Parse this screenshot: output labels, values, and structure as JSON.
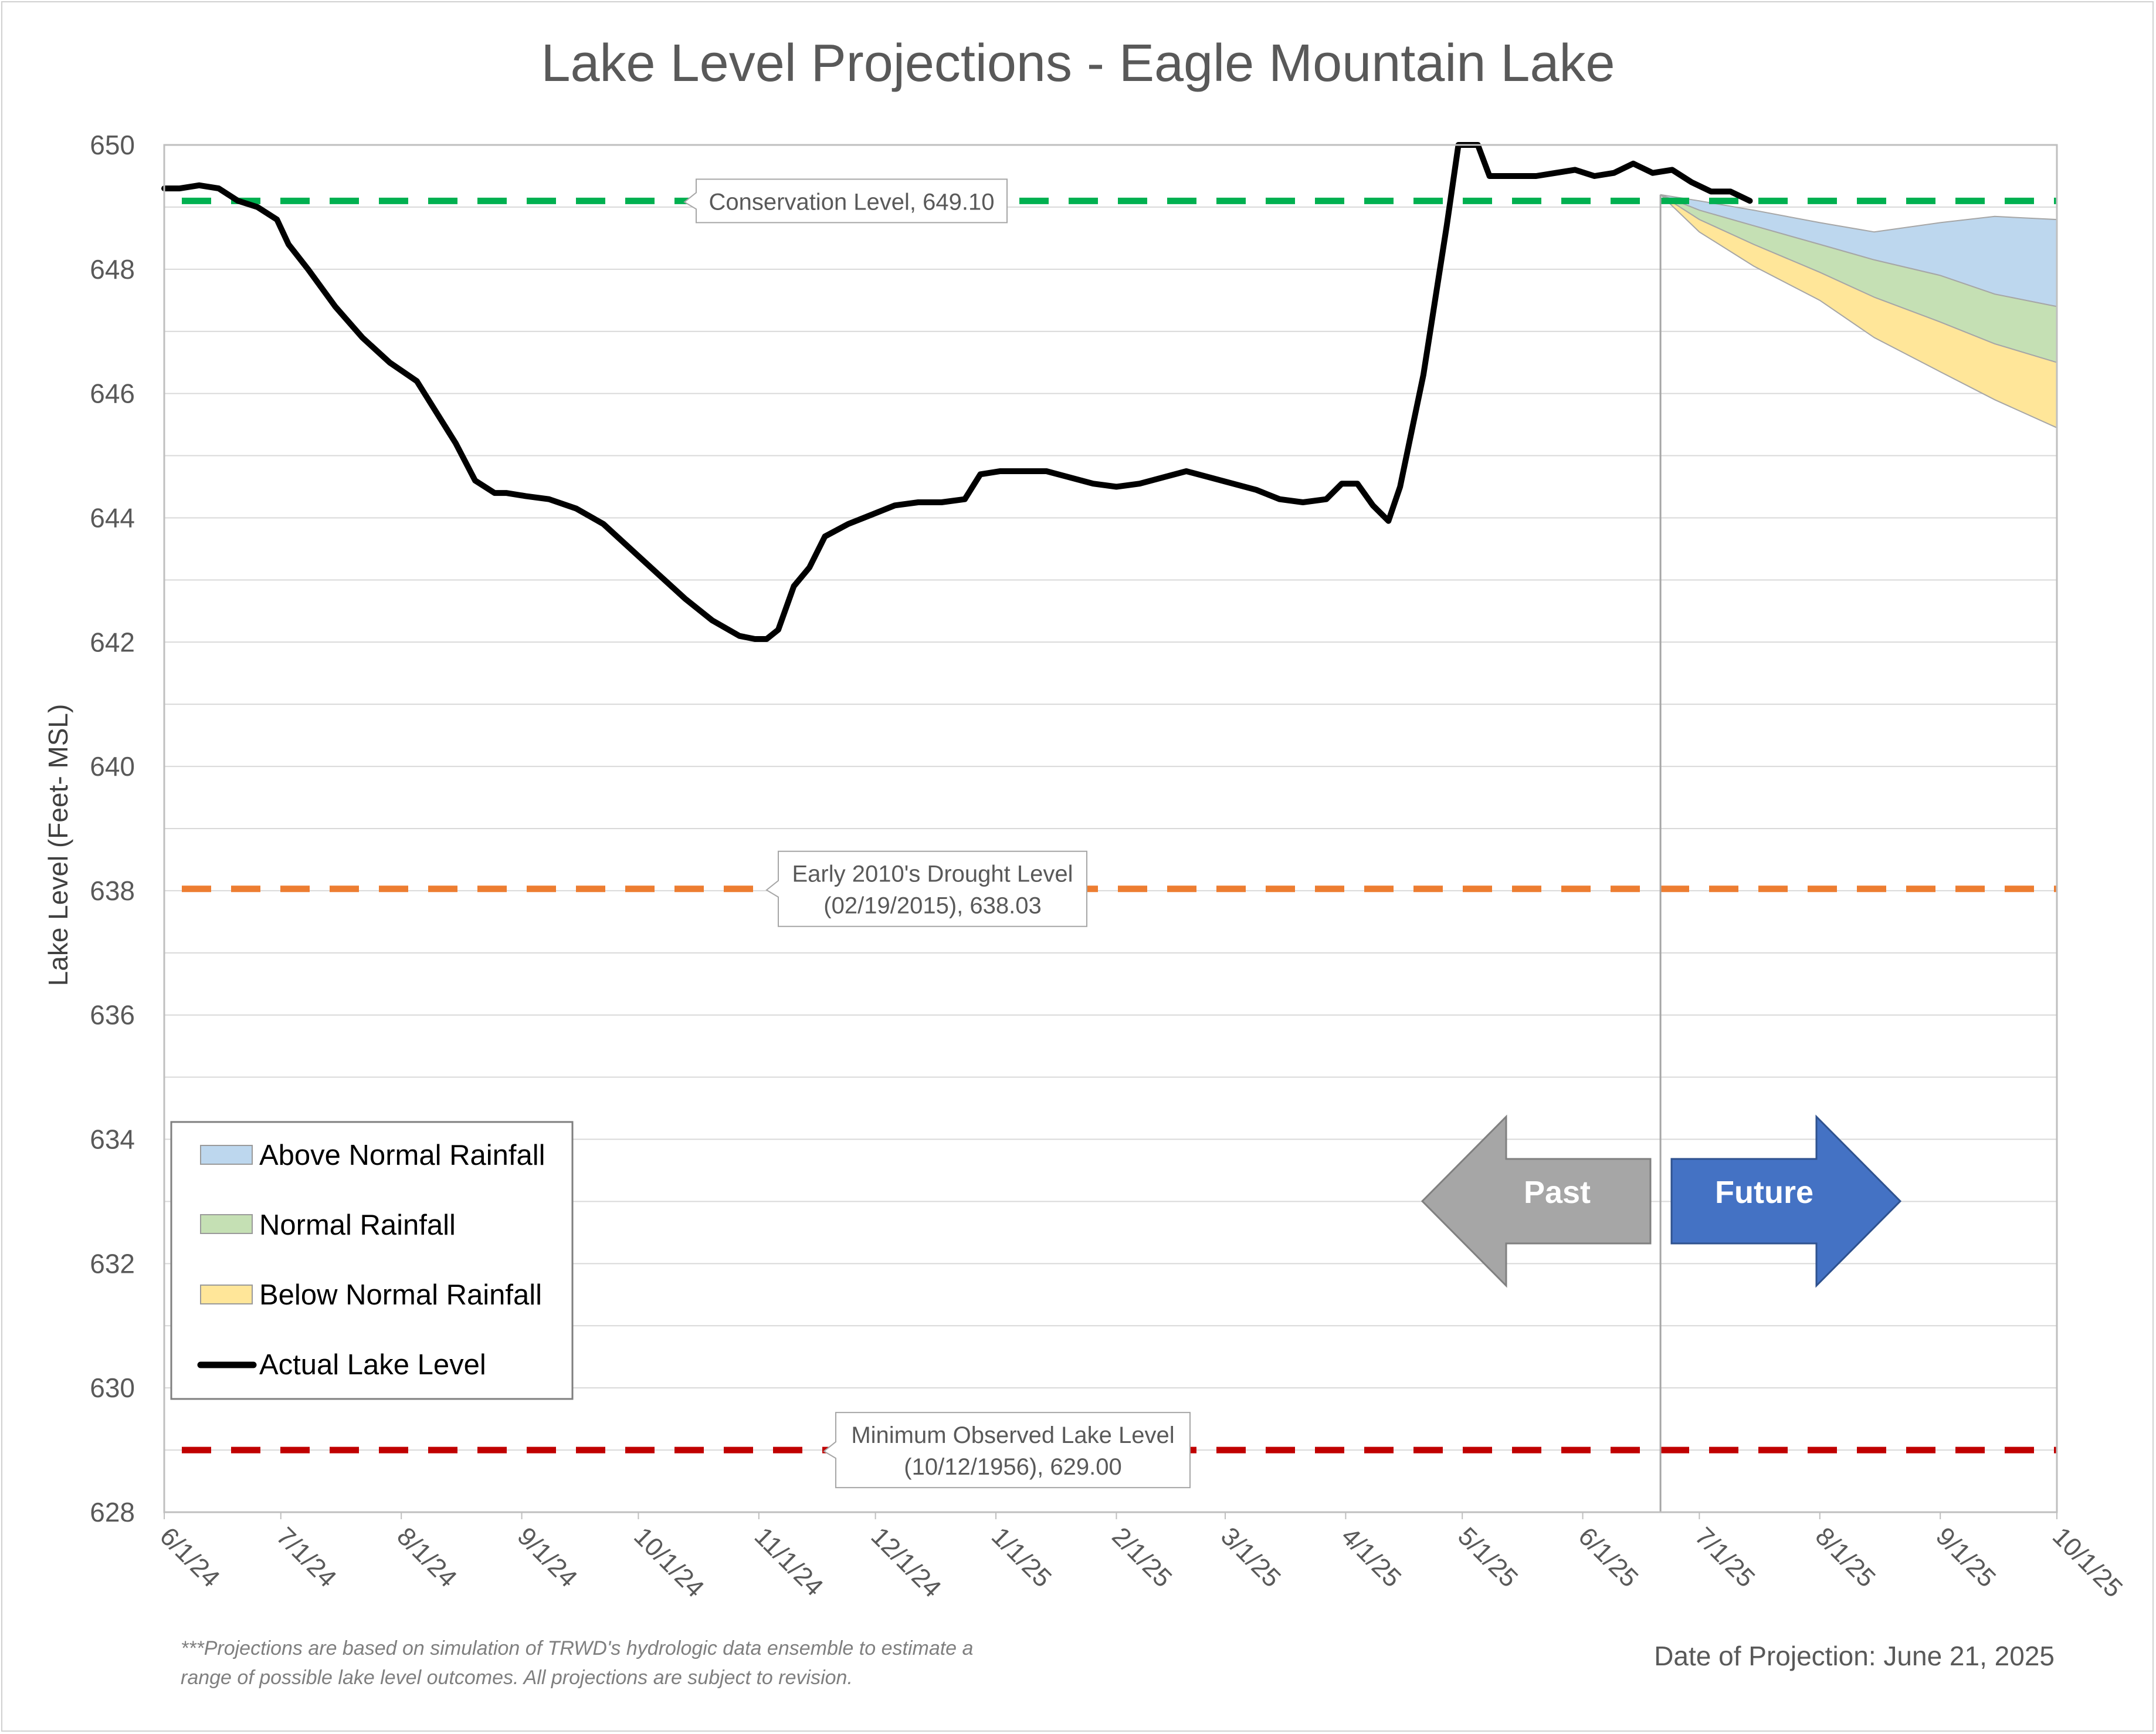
{
  "chart_data": {
    "type": "line",
    "title": "Lake Level Projections - Eagle Mountain Lake",
    "ylabel": "Lake Level (Feet- MSL)",
    "xlabel": "",
    "ylim": [
      628,
      650
    ],
    "yticks": [
      628,
      630,
      632,
      634,
      636,
      638,
      640,
      642,
      644,
      646,
      648,
      650
    ],
    "ygrid_step": 1,
    "x_start": "2024-06-01",
    "x_end": "2025-10-01",
    "xticks": [
      {
        "date": "2024-06-01",
        "label": "6/1/24"
      },
      {
        "date": "2024-07-01",
        "label": "7/1/24"
      },
      {
        "date": "2024-08-01",
        "label": "8/1/24"
      },
      {
        "date": "2024-09-01",
        "label": "9/1/24"
      },
      {
        "date": "2024-10-01",
        "label": "10/1/24"
      },
      {
        "date": "2024-11-01",
        "label": "11/1/24"
      },
      {
        "date": "2024-12-01",
        "label": "12/1/24"
      },
      {
        "date": "2025-01-01",
        "label": "1/1/25"
      },
      {
        "date": "2025-02-01",
        "label": "2/1/25"
      },
      {
        "date": "2025-03-01",
        "label": "3/1/25"
      },
      {
        "date": "2025-04-01",
        "label": "4/1/25"
      },
      {
        "date": "2025-05-01",
        "label": "5/1/25"
      },
      {
        "date": "2025-06-01",
        "label": "6/1/25"
      },
      {
        "date": "2025-07-01",
        "label": "7/1/25"
      },
      {
        "date": "2025-08-01",
        "label": "8/1/25"
      },
      {
        "date": "2025-09-01",
        "label": "9/1/25"
      },
      {
        "date": "2025-10-01",
        "label": "10/1/25"
      }
    ],
    "projection_date": "2025-06-21",
    "reference_lines": [
      {
        "label": "Conservation Level, 649.10",
        "value": 649.1,
        "color": "#00b050"
      },
      {
        "label": "Early 2010's Drought Level\n(02/19/2015), 638.03",
        "value": 638.03,
        "color": "#ed7d31"
      },
      {
        "label": "Minimum Observed Lake Level\n(10/12/1956), 629.00",
        "value": 629.0,
        "color": "#c00000"
      }
    ],
    "series": [
      {
        "name": "Actual Lake Level",
        "color": "#000000",
        "x": [
          "2024-06-01",
          "2024-06-05",
          "2024-06-10",
          "2024-06-15",
          "2024-06-20",
          "2024-06-25",
          "2024-06-30",
          "2024-07-03",
          "2024-07-08",
          "2024-07-15",
          "2024-07-22",
          "2024-07-29",
          "2024-08-05",
          "2024-08-10",
          "2024-08-15",
          "2024-08-20",
          "2024-08-25",
          "2024-08-28",
          "2024-09-02",
          "2024-09-08",
          "2024-09-15",
          "2024-09-22",
          "2024-09-29",
          "2024-10-06",
          "2024-10-13",
          "2024-10-20",
          "2024-10-27",
          "2024-10-31",
          "2024-11-03",
          "2024-11-06",
          "2024-11-10",
          "2024-11-14",
          "2024-11-18",
          "2024-11-24",
          "2024-11-30",
          "2024-12-06",
          "2024-12-12",
          "2024-12-18",
          "2024-12-24",
          "2024-12-28",
          "2025-01-02",
          "2025-01-08",
          "2025-01-14",
          "2025-01-20",
          "2025-01-26",
          "2025-02-01",
          "2025-02-07",
          "2025-02-13",
          "2025-02-19",
          "2025-02-25",
          "2025-03-03",
          "2025-03-09",
          "2025-03-15",
          "2025-03-21",
          "2025-03-27",
          "2025-03-31",
          "2025-04-04",
          "2025-04-08",
          "2025-04-12",
          "2025-04-15",
          "2025-04-18",
          "2025-04-21",
          "2025-04-24",
          "2025-04-27",
          "2025-04-30",
          "2025-05-02",
          "2025-05-05",
          "2025-05-08",
          "2025-05-11",
          "2025-05-15",
          "2025-05-20",
          "2025-05-25",
          "2025-05-30",
          "2025-06-04",
          "2025-06-09",
          "2025-06-14",
          "2025-06-19",
          "2025-06-24",
          "2025-06-29",
          "2025-07-04",
          "2025-07-09",
          "2025-07-14"
        ],
        "values": [
          649.3,
          649.3,
          649.35,
          649.3,
          649.1,
          649.0,
          648.8,
          648.4,
          648.0,
          647.4,
          646.9,
          646.5,
          646.2,
          645.7,
          645.2,
          644.6,
          644.4,
          644.4,
          644.35,
          644.3,
          644.15,
          643.9,
          643.5,
          643.1,
          642.7,
          642.35,
          642.1,
          642.05,
          642.05,
          642.2,
          642.9,
          643.2,
          643.7,
          643.9,
          644.05,
          644.2,
          644.25,
          644.25,
          644.3,
          644.7,
          644.75,
          644.75,
          644.75,
          644.65,
          644.55,
          644.5,
          644.55,
          644.65,
          644.75,
          644.65,
          644.55,
          644.45,
          644.3,
          644.25,
          644.3,
          644.55,
          644.55,
          644.2,
          643.95,
          644.5,
          645.4,
          646.3,
          647.5,
          648.7,
          650.0,
          650.3,
          650.0,
          649.5,
          649.5,
          649.5,
          649.5,
          649.55,
          649.6,
          649.5,
          649.55,
          649.7,
          649.55,
          649.6,
          649.4,
          649.25,
          649.25,
          649.1
        ]
      },
      {
        "name": "Above Normal Rainfall",
        "color": "#bdd7ee",
        "x": [
          "2025-06-21",
          "2025-07-01",
          "2025-07-15",
          "2025-08-01",
          "2025-08-15",
          "2025-09-01",
          "2025-09-15",
          "2025-10-01"
        ],
        "upper": [
          649.2,
          649.1,
          648.95,
          648.75,
          648.6,
          648.75,
          648.85,
          648.8
        ],
        "lower": [
          649.2,
          648.95,
          648.7,
          648.4,
          648.15,
          647.9,
          647.6,
          647.4
        ]
      },
      {
        "name": "Normal Rainfall",
        "color": "#c5e0b4",
        "x": [
          "2025-06-21",
          "2025-07-01",
          "2025-07-15",
          "2025-08-01",
          "2025-08-15",
          "2025-09-01",
          "2025-09-15",
          "2025-10-01"
        ],
        "upper": [
          649.2,
          648.95,
          648.7,
          648.4,
          648.15,
          647.9,
          647.6,
          647.4
        ],
        "lower": [
          649.2,
          648.8,
          648.4,
          647.95,
          647.55,
          647.15,
          646.8,
          646.5
        ]
      },
      {
        "name": "Below Normal Rainfall",
        "color": "#ffe699",
        "x": [
          "2025-06-21",
          "2025-07-01",
          "2025-07-15",
          "2025-08-01",
          "2025-08-15",
          "2025-09-01",
          "2025-09-15",
          "2025-10-01"
        ],
        "upper": [
          649.2,
          648.8,
          648.4,
          647.95,
          647.55,
          647.15,
          646.8,
          646.5
        ],
        "lower": [
          649.2,
          648.6,
          648.05,
          647.5,
          646.9,
          646.35,
          645.9,
          645.45
        ]
      }
    ],
    "legend": {
      "position": "bottom-left",
      "entries": [
        "Above Normal Rainfall",
        "Normal Rainfall",
        "Below Normal Rainfall",
        "Actual Lake Level"
      ]
    },
    "grid": true
  },
  "arrows": {
    "past_label": "Past",
    "future_label": "Future",
    "past_color": "#a6a6a6",
    "future_color": "#4472c4"
  },
  "footnote": {
    "line1": "***Projections are based on simulation of TRWD's hydrologic data ensemble to estimate a",
    "line2": "range of possible lake level outcomes.  All projections are subject to revision."
  },
  "date_of_projection": "Date of Projection: June 21, 2025"
}
